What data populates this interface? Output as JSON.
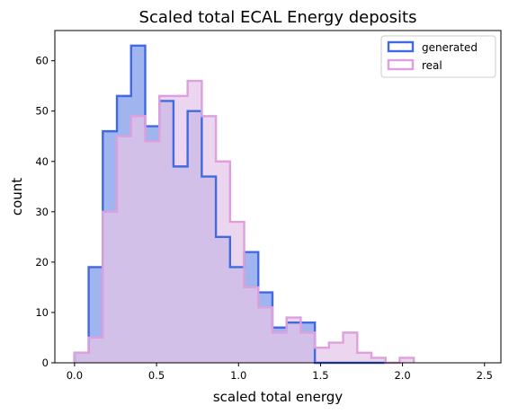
{
  "chart_data": {
    "type": "histogram",
    "title": "Scaled total ECAL Energy deposits",
    "xlabel": "scaled total energy",
    "ylabel": "count",
    "xlim": [
      -0.12,
      2.6
    ],
    "ylim": [
      0,
      66
    ],
    "xticks": [
      0.0,
      0.5,
      1.0,
      1.5,
      2.0,
      2.5
    ],
    "xtick_labels": [
      "0.0",
      "0.5",
      "1.0",
      "1.5",
      "2.0",
      "2.5"
    ],
    "yticks": [
      0,
      10,
      20,
      30,
      40,
      50,
      60
    ],
    "ytick_labels": [
      "0",
      "10",
      "20",
      "30",
      "40",
      "50",
      "60"
    ],
    "grid": false,
    "legend_position": "top-right",
    "series": [
      {
        "name": "generated",
        "fill_color": "#a0b4ef",
        "edge_color": "#4169e1",
        "bin_edges": [
          0.0,
          0.0862,
          0.1724,
          0.2586,
          0.3448,
          0.431,
          0.5172,
          0.6034,
          0.6897,
          0.7759,
          0.8621,
          0.9483,
          1.0345,
          1.1207,
          1.2069,
          1.2931,
          1.3793,
          1.4655,
          1.5517,
          1.6379,
          1.7241,
          1.8103
        ],
        "counts": [
          2,
          19,
          46,
          53,
          63,
          47,
          52,
          39,
          50,
          37,
          25,
          19,
          22,
          14,
          7,
          8,
          8,
          0,
          0,
          0,
          0,
          0
        ]
      },
      {
        "name": "real",
        "fill_color": "#e6c5e8",
        "edge_color": "#dda0dd",
        "bin_edges": [
          0.0,
          0.0862,
          0.1724,
          0.2586,
          0.3448,
          0.431,
          0.5172,
          0.6034,
          0.6897,
          0.7759,
          0.8621,
          0.9483,
          1.0345,
          1.1207,
          1.2069,
          1.2931,
          1.3793,
          1.4655,
          1.5517,
          1.6379,
          1.7241,
          1.8103,
          1.8966,
          1.9828
        ],
        "counts": [
          2,
          5,
          30,
          45,
          49,
          44,
          53,
          53,
          56,
          49,
          40,
          28,
          15,
          11,
          6,
          9,
          6,
          3,
          4,
          6,
          2,
          1,
          0,
          1
        ]
      }
    ]
  }
}
